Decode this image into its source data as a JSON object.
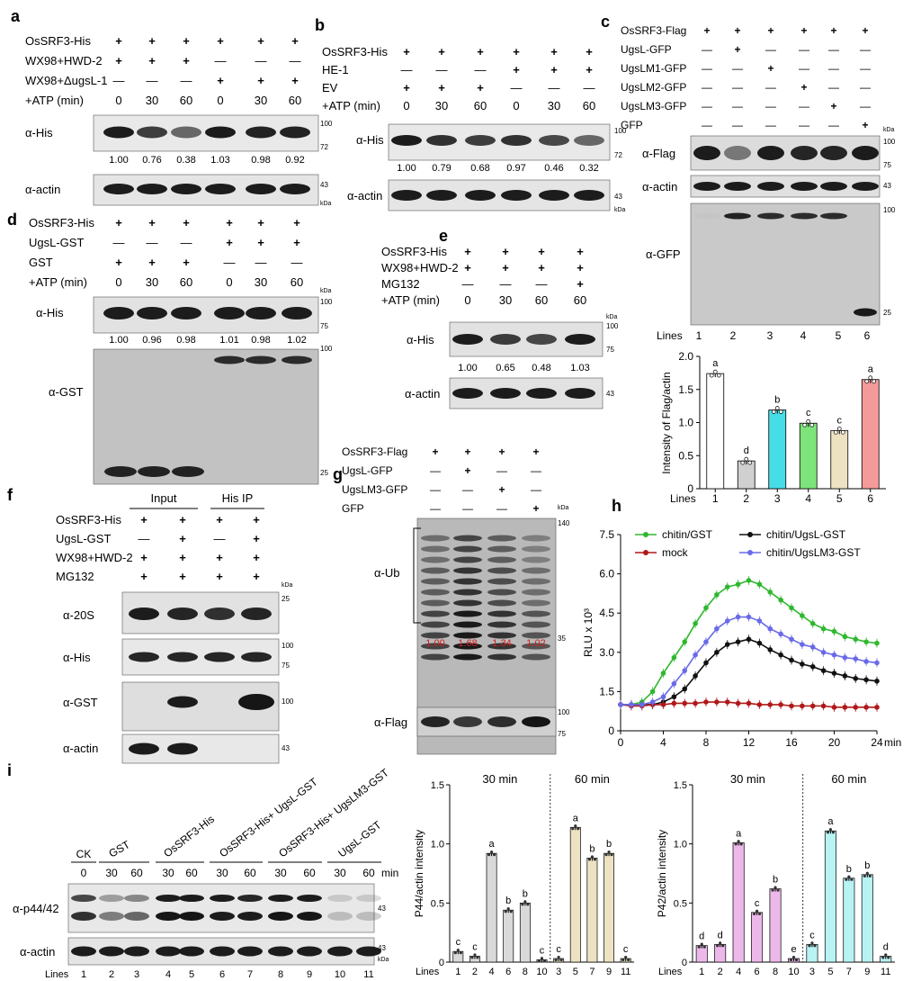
{
  "panel_letters": [
    "a",
    "b",
    "c",
    "d",
    "e",
    "f",
    "g",
    "h",
    "i"
  ],
  "units": {
    "kda": "kDa",
    "ladder": [
      "100",
      "72",
      "43",
      "75",
      "25",
      "140",
      "35"
    ],
    "min": "min"
  },
  "a": {
    "rows": [
      {
        "label": "OsSRF3-His",
        "vals": [
          "+",
          "+",
          "+",
          "+",
          "+",
          "+"
        ]
      },
      {
        "label": "WX98+HWD-2",
        "vals": [
          "+",
          "+",
          "+",
          "—",
          "—",
          "—"
        ]
      },
      {
        "label": "WX98+ΔugsL-1",
        "vals": [
          "—",
          "—",
          "—",
          "+",
          "+",
          "+"
        ]
      },
      {
        "label": "+ATP (min)",
        "vals": [
          "0",
          "30",
          "60",
          "0",
          "30",
          "60"
        ]
      }
    ],
    "blots": [
      "α-His",
      "α-actin"
    ],
    "quant": [
      "1.00",
      "0.76",
      "0.38",
      "1.03",
      "0.98",
      "0.92"
    ]
  },
  "b": {
    "rows": [
      {
        "label": "OsSRF3-His",
        "vals": [
          "+",
          "+",
          "+",
          "+",
          "+",
          "+"
        ]
      },
      {
        "label": "HE-1",
        "vals": [
          "—",
          "—",
          "—",
          "+",
          "+",
          "+"
        ]
      },
      {
        "label": "EV",
        "vals": [
          "+",
          "+",
          "+",
          "—",
          "—",
          "—"
        ]
      },
      {
        "label": "+ATP (min)",
        "vals": [
          "0",
          "30",
          "60",
          "0",
          "30",
          "60"
        ]
      }
    ],
    "blots": [
      "α-His",
      "α-actin"
    ],
    "quant": [
      "1.00",
      "0.79",
      "0.68",
      "0.97",
      "0.46",
      "0.32"
    ]
  },
  "c": {
    "rows": [
      {
        "label": "OsSRF3-Flag",
        "vals": [
          "+",
          "+",
          "+",
          "+",
          "+",
          "+"
        ]
      },
      {
        "label": "UgsL-GFP",
        "vals": [
          "—",
          "+",
          "—",
          "—",
          "—",
          "—"
        ]
      },
      {
        "label": "UgsLM1-GFP",
        "vals": [
          "—",
          "—",
          "+",
          "—",
          "—",
          "—"
        ]
      },
      {
        "label": "UgsLM2-GFP",
        "vals": [
          "—",
          "—",
          "—",
          "+",
          "—",
          "—"
        ]
      },
      {
        "label": "UgsLM3-GFP",
        "vals": [
          "—",
          "—",
          "—",
          "—",
          "+",
          "—"
        ]
      },
      {
        "label": "GFP",
        "vals": [
          "—",
          "—",
          "—",
          "—",
          "—",
          "+"
        ]
      }
    ],
    "blots": [
      "α-Flag",
      "α-actin",
      "α-GFP"
    ],
    "lines_label": "Lines",
    "lanes": [
      "1",
      "2",
      "3",
      "4",
      "5",
      "6"
    ]
  },
  "d": {
    "rows": [
      {
        "label": "OsSRF3-His",
        "vals": [
          "+",
          "+",
          "+",
          "+",
          "+",
          "+"
        ]
      },
      {
        "label": "UgsL-GST",
        "vals": [
          "—",
          "—",
          "—",
          "+",
          "+",
          "+"
        ]
      },
      {
        "label": "GST",
        "vals": [
          "+",
          "+",
          "+",
          "—",
          "—",
          "—"
        ]
      },
      {
        "label": "+ATP (min)",
        "vals": [
          "0",
          "30",
          "60",
          "0",
          "30",
          "60"
        ]
      }
    ],
    "blots": [
      "α-His",
      "α-GST"
    ],
    "quant": [
      "1.00",
      "0.96",
      "0.98",
      "1.01",
      "0.98",
      "1.02"
    ]
  },
  "e": {
    "rows": [
      {
        "label": "OsSRF3-His",
        "vals": [
          "+",
          "+",
          "+",
          "+"
        ]
      },
      {
        "label": "WX98+HWD-2",
        "vals": [
          "+",
          "+",
          "+",
          "+"
        ]
      },
      {
        "label": "MG132",
        "vals": [
          "—",
          "—",
          "—",
          "+"
        ]
      },
      {
        "label": "+ATP (min)",
        "vals": [
          "0",
          "30",
          "60",
          "60"
        ]
      }
    ],
    "blots": [
      "α-His",
      "α-actin"
    ],
    "quant": [
      "1.00",
      "0.65",
      "0.48",
      "1.03"
    ]
  },
  "f": {
    "groups": [
      "Input",
      "His IP"
    ],
    "rows": [
      {
        "label": "OsSRF3-His",
        "vals": [
          "+",
          "+",
          "+",
          "+"
        ]
      },
      {
        "label": "UgsL-GST",
        "vals": [
          "—",
          "+",
          "—",
          "+"
        ]
      },
      {
        "label": "WX98+HWD-2",
        "vals": [
          "+",
          "+",
          "+",
          "+"
        ]
      },
      {
        "label": "MG132",
        "vals": [
          "+",
          "+",
          "+",
          "+"
        ]
      }
    ],
    "blots": [
      "α-20S",
      "α-His",
      "α-GST",
      "α-actin"
    ]
  },
  "g": {
    "rows": [
      {
        "label": "OsSRF3-Flag",
        "vals": [
          "+",
          "+",
          "+",
          "+"
        ]
      },
      {
        "label": "UgsL-GFP",
        "vals": [
          "—",
          "+",
          "—",
          "—"
        ]
      },
      {
        "label": "UgsLM3-GFP",
        "vals": [
          "—",
          "—",
          "+",
          "—"
        ]
      },
      {
        "label": "GFP",
        "vals": [
          "—",
          "—",
          "—",
          "+"
        ]
      }
    ],
    "blots": [
      "α-Ub",
      "α-Flag"
    ],
    "quant": [
      "1.00",
      "1.68",
      "1.34",
      "1.02"
    ]
  },
  "i_blot": {
    "groups": [
      "CK",
      "GST",
      "OsSRF3-His",
      "OsSRF3-His+ UgsL-GST",
      "OsSRF3-His+ UgsLM3-GST",
      "UgsL-GST"
    ],
    "times": [
      "0",
      "30",
      "60",
      "30",
      "60",
      "30",
      "60",
      "30",
      "60",
      "30",
      "60"
    ],
    "blots": [
      "α-p44/42",
      "α-actin"
    ],
    "lines_label": "Lines",
    "lanes": [
      "1",
      "2",
      "3",
      "4",
      "5",
      "6",
      "7",
      "8",
      "9",
      "10",
      "11"
    ]
  },
  "chart_data": [
    {
      "id": "c-bar",
      "type": "bar",
      "ylabel": "Intensity of Flag/actin",
      "xlabel": "Lines",
      "categories": [
        "1",
        "2",
        "3",
        "4",
        "5",
        "6"
      ],
      "values": [
        1.74,
        0.42,
        1.19,
        0.99,
        0.88,
        1.65
      ],
      "letters": [
        "a",
        "d",
        "b",
        "c",
        "c",
        "a"
      ],
      "colors": [
        "#ffffff",
        "#d0d0d0",
        "#47dde6",
        "#7de47b",
        "#ede3c2",
        "#f59a9a"
      ],
      "ylim": [
        0,
        2.0
      ],
      "yticks": [
        "0",
        "0.5",
        "1.0",
        "1.5",
        "2.0"
      ]
    },
    {
      "id": "h-line",
      "type": "line",
      "ylabel": "RLU x 10³",
      "xlabel": "min",
      "xlim": [
        0,
        24
      ],
      "ylim": [
        0,
        7.5
      ],
      "xticks": [
        "0",
        "4",
        "8",
        "12",
        "16",
        "20",
        "24"
      ],
      "yticks": [
        "0",
        "1.5",
        "3.0",
        "4.5",
        "6.0",
        "7.5"
      ],
      "x": [
        0,
        1,
        2,
        3,
        4,
        5,
        6,
        7,
        8,
        9,
        10,
        11,
        12,
        13,
        14,
        15,
        16,
        17,
        18,
        19,
        20,
        21,
        22,
        23,
        24
      ],
      "series": [
        {
          "name": "chitin/GST",
          "color": "#2fb82f",
          "values": [
            1.0,
            1.0,
            1.1,
            1.5,
            2.2,
            2.8,
            3.4,
            4.1,
            4.7,
            5.2,
            5.5,
            5.6,
            5.75,
            5.6,
            5.3,
            5.0,
            4.7,
            4.4,
            4.1,
            3.9,
            3.8,
            3.6,
            3.5,
            3.4,
            3.35
          ]
        },
        {
          "name": "chitin/UgsL-GST",
          "color": "#111111",
          "values": [
            1.0,
            1.0,
            1.0,
            1.0,
            1.1,
            1.3,
            1.6,
            2.1,
            2.6,
            3.0,
            3.3,
            3.4,
            3.5,
            3.35,
            3.1,
            2.9,
            2.7,
            2.55,
            2.45,
            2.3,
            2.2,
            2.1,
            2.0,
            1.95,
            1.9
          ]
        },
        {
          "name": "mock",
          "color": "#b01818",
          "values": [
            1.0,
            0.95,
            0.95,
            1.0,
            1.0,
            1.05,
            1.05,
            1.05,
            1.1,
            1.1,
            1.1,
            1.05,
            1.05,
            1.0,
            1.0,
            1.0,
            0.95,
            0.95,
            0.95,
            0.95,
            0.9,
            0.9,
            0.9,
            0.9,
            0.9
          ]
        },
        {
          "name": "chitin/UgsLM3-GST",
          "color": "#6a6ae8",
          "values": [
            1.0,
            1.0,
            1.0,
            1.1,
            1.3,
            1.8,
            2.3,
            2.9,
            3.4,
            3.9,
            4.2,
            4.35,
            4.35,
            4.2,
            3.9,
            3.7,
            3.5,
            3.3,
            3.2,
            3.0,
            2.9,
            2.8,
            2.75,
            2.65,
            2.6
          ]
        }
      ]
    },
    {
      "id": "i-p44",
      "type": "bar",
      "ylabel": "P44/actin intensity",
      "xlabel": "Lines",
      "groups": [
        "30 min",
        "60 min"
      ],
      "categories": [
        "1",
        "2",
        "4",
        "6",
        "8",
        "10",
        "3",
        "5",
        "7",
        "9",
        "11"
      ],
      "values": [
        0.09,
        0.05,
        0.92,
        0.44,
        0.5,
        0.02,
        0.03,
        1.14,
        0.88,
        0.92,
        0.03
      ],
      "letters": [
        "c",
        "c",
        "a",
        "b",
        "b",
        "c",
        "c",
        "a",
        "b",
        "b",
        "c"
      ],
      "colors": [
        "#d9d9d9",
        "#d9d9d9",
        "#d9d9d9",
        "#d9d9d9",
        "#d9d9d9",
        "#d9d9d9",
        "#ede3c2",
        "#ede3c2",
        "#ede3c2",
        "#ede3c2",
        "#ede3c2"
      ],
      "ylim": [
        0,
        1.5
      ],
      "yticks": [
        "0",
        "0.5",
        "1.0",
        "1.5"
      ]
    },
    {
      "id": "i-p42",
      "type": "bar",
      "ylabel": "P42/actin intensity",
      "xlabel": "Lines",
      "groups": [
        "30 min",
        "60 min"
      ],
      "categories": [
        "1",
        "2",
        "4",
        "6",
        "8",
        "10",
        "3",
        "5",
        "7",
        "9",
        "11"
      ],
      "values": [
        0.14,
        0.15,
        1.01,
        0.42,
        0.62,
        0.03,
        0.15,
        1.11,
        0.71,
        0.74,
        0.05
      ],
      "letters": [
        "d",
        "d",
        "a",
        "c",
        "b",
        "e",
        "c",
        "a",
        "b",
        "b",
        "d"
      ],
      "colors": [
        "#ecb8ea",
        "#ecb8ea",
        "#ecb8ea",
        "#ecb8ea",
        "#ecb8ea",
        "#ecb8ea",
        "#b8f2f2",
        "#b8f2f2",
        "#b8f2f2",
        "#b8f2f2",
        "#b8f2f2"
      ],
      "ylim": [
        0,
        1.5
      ],
      "yticks": [
        "0",
        "0.5",
        "1.0",
        "1.5"
      ]
    }
  ]
}
